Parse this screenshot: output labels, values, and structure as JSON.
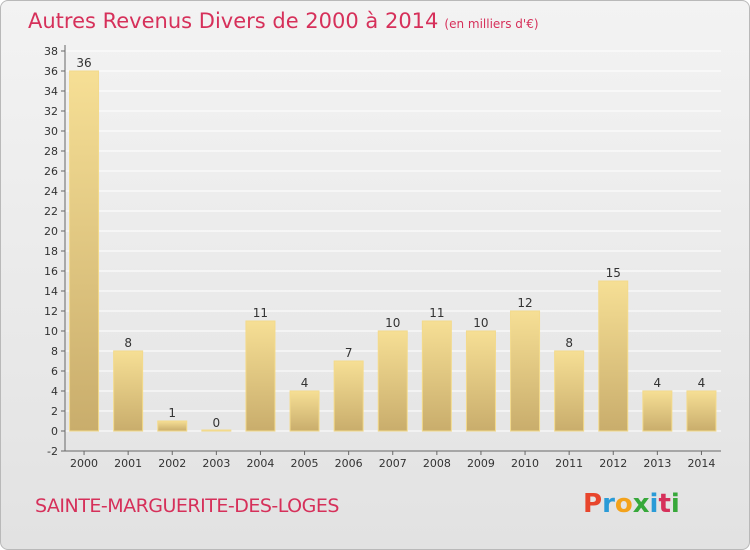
{
  "header": {
    "title": "Autres Revenus Divers de 2000 à 2014",
    "unit": "(en milliers d'€)"
  },
  "footer": {
    "town": "SAINTE-MARGUERITE-DES-LOGES",
    "logo_letters": [
      "P",
      "r",
      "o",
      "x",
      "i",
      "t",
      "i"
    ],
    "logo_colors": [
      "#e8452c",
      "#2a9bd7",
      "#f3a21b",
      "#37a83a",
      "#2a9bd7",
      "#d6305a",
      "#37a83a"
    ]
  },
  "chart_data": {
    "type": "bar",
    "title": "Autres Revenus Divers de 2000 à 2014",
    "xlabel": "",
    "ylabel": "",
    "categories": [
      "2000",
      "2001",
      "2002",
      "2003",
      "2004",
      "2005",
      "2006",
      "2007",
      "2008",
      "2009",
      "2010",
      "2011",
      "2012",
      "2013",
      "2014"
    ],
    "values": [
      36,
      8,
      1,
      0,
      11,
      4,
      7,
      10,
      11,
      10,
      12,
      8,
      15,
      4,
      4
    ],
    "ylim": [
      -2,
      38
    ],
    "yticks": [
      -2,
      0,
      2,
      4,
      6,
      8,
      10,
      12,
      14,
      16,
      18,
      20,
      22,
      24,
      26,
      28,
      30,
      32,
      34,
      36,
      38
    ],
    "grid": true,
    "colors": {
      "bar_fill_light": "#f6df95",
      "bar_fill_dark": "#c9ad6c",
      "bar_edge": "#f3da8b",
      "grid": "#ffffff",
      "axis": "#666666",
      "text": "#333333"
    }
  }
}
